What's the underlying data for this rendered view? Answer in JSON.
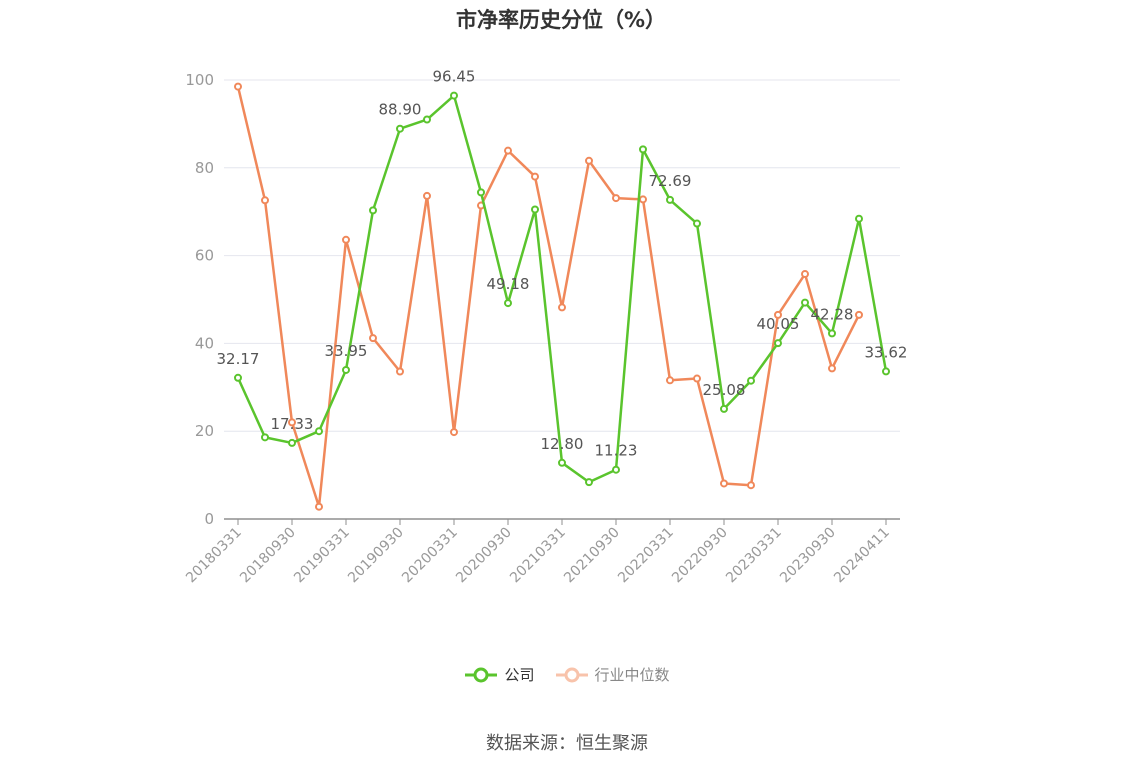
{
  "chart_data": {
    "type": "line",
    "title": "市净率历史分位（%）",
    "ylim": [
      0,
      100
    ],
    "yticks": [
      0,
      20,
      40,
      60,
      80,
      100
    ],
    "x": [
      "20180331",
      "20180630",
      "20180930",
      "20181231",
      "20190331",
      "20190630",
      "20190930",
      "20191231",
      "20200331",
      "20200630",
      "20200930",
      "20201231",
      "20210331",
      "20210630",
      "20210930",
      "20211231",
      "20220331",
      "20220630",
      "20220930",
      "20221231",
      "20230331",
      "20230630",
      "20230930",
      "20231231",
      "20240411"
    ],
    "xtick_labels": [
      "20180331",
      "20180930",
      "20190331",
      "20190930",
      "20200331",
      "20200930",
      "20210331",
      "20210930",
      "20220331",
      "20220930",
      "20230331",
      "20230930",
      "20240411"
    ],
    "series": [
      {
        "name": "公司",
        "color": "#5ac42d",
        "values": [
          32.17,
          18.6,
          17.33,
          20.0,
          33.95,
          70.3,
          88.9,
          91.0,
          96.45,
          74.4,
          49.18,
          70.5,
          12.8,
          8.4,
          11.23,
          84.2,
          72.69,
          67.3,
          25.08,
          31.5,
          40.05,
          49.3,
          42.28,
          68.4,
          33.62
        ],
        "labels": {
          "0": "32.17",
          "2": "17.33",
          "4": "33.95",
          "6": "88.90",
          "8": "96.45",
          "10": "49.18",
          "12": "12.80",
          "14": "11.23",
          "16": "72.69",
          "18": "25.08",
          "20": "40.05",
          "22": "42.28",
          "24": "33.62"
        }
      },
      {
        "name": "行业中位数",
        "color": "#f0885a",
        "values": [
          98.5,
          72.6,
          22.0,
          2.8,
          63.6,
          41.2,
          33.6,
          73.6,
          19.8,
          71.4,
          83.9,
          78.0,
          48.2,
          81.6,
          73.1,
          72.8,
          31.6,
          32.0,
          8.1,
          7.7,
          46.5,
          55.8,
          34.3,
          46.5,
          null
        ]
      }
    ],
    "legend_position": "bottom",
    "grid": true
  },
  "footer": {
    "source": "数据来源：恒生聚源"
  }
}
